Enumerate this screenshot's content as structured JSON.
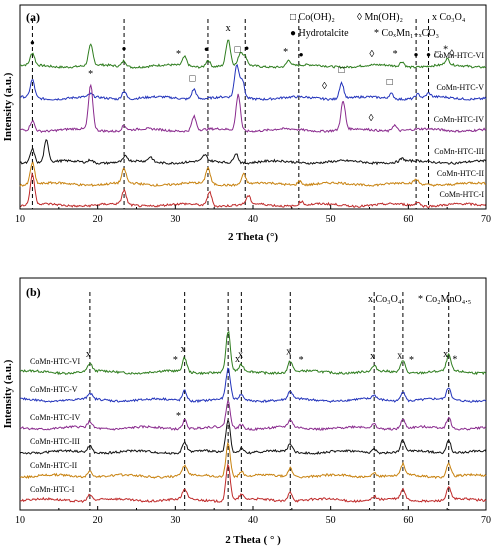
{
  "chart_data": [
    {
      "type": "line",
      "panel_label": "(a)",
      "xlabel": "2 Theta (°)",
      "ylabel": "Intensity (a.u.)",
      "xlim": [
        10,
        70
      ],
      "xticks": [
        10,
        20,
        30,
        40,
        50,
        60,
        70
      ],
      "legend": [
        {
          "symbol": "□",
          "text": "Co(OH)₂"
        },
        {
          "symbol": "◊",
          "text": "Mn(OH)₂"
        },
        {
          "symbol": "x",
          "text": "Co₃O₄"
        },
        {
          "symbol": "●",
          "text": "Hydrotalcite"
        },
        {
          "symbol": "*",
          "text": "CoₓMn₁₋ₓCO₃"
        }
      ],
      "series": [
        {
          "name": "CoMn-HTC-VI",
          "color": "#2e7d1e",
          "peaks": [
            [
              11.6,
              12
            ],
            [
              19.1,
              20
            ],
            [
              23.4,
              6
            ],
            [
              31.2,
              9
            ],
            [
              34.2,
              7
            ],
            [
              36.8,
              26
            ],
            [
              38.4,
              12
            ],
            [
              39.0,
              8
            ],
            [
              44.6,
              6
            ],
            [
              59.2,
              5
            ],
            [
              65.0,
              6
            ]
          ]
        },
        {
          "name": "CoMn-HTC-V",
          "color": "#2233bb",
          "peaks": [
            [
              11.6,
              18
            ],
            [
              19.1,
              3
            ],
            [
              23.4,
              8
            ],
            [
              32.4,
              10
            ],
            [
              37.9,
              32
            ],
            [
              38.6,
              18
            ],
            [
              51.4,
              16
            ],
            [
              57.8,
              5
            ],
            [
              61.2,
              4
            ],
            [
              62.6,
              4
            ]
          ]
        },
        {
          "name": "CoMn-HTC-IV",
          "color": "#8a2b8e",
          "peaks": [
            [
              11.6,
              10
            ],
            [
              19.1,
              44
            ],
            [
              23.4,
              5
            ],
            [
              32.4,
              14
            ],
            [
              38.1,
              36
            ],
            [
              51.6,
              28
            ],
            [
              58.2,
              6
            ]
          ]
        },
        {
          "name": "CoMn-HTC-III",
          "color": "#111111",
          "peaks": [
            [
              11.6,
              14
            ],
            [
              13.4,
              22
            ],
            [
              19.1,
              3
            ],
            [
              23.6,
              5
            ],
            [
              26.8,
              5
            ],
            [
              33.8,
              6
            ],
            [
              37.8,
              10
            ],
            [
              59.2,
              3
            ]
          ]
        },
        {
          "name": "CoMn-HTC-II",
          "color": "#c8820f",
          "peaks": [
            [
              11.6,
              22
            ],
            [
              23.4,
              14
            ],
            [
              34.2,
              16
            ],
            [
              38.8,
              10
            ],
            [
              46.0,
              4
            ],
            [
              61.0,
              4
            ]
          ]
        },
        {
          "name": "CoMn-HTC-I",
          "color": "#bf2a2a",
          "peaks": [
            [
              11.6,
              30
            ],
            [
              23.4,
              14
            ],
            [
              34.4,
              14
            ],
            [
              39.4,
              8
            ],
            [
              46.2,
              4
            ],
            [
              61.2,
              4
            ]
          ]
        }
      ],
      "reference_lines": [
        11.6,
        23.4,
        34.2,
        39.0,
        45.9,
        61.0,
        62.6
      ],
      "annotations": [
        {
          "x": 11.6,
          "series": "CoMn-HTC-VI",
          "label": "●"
        },
        {
          "x": 19.1,
          "series": "CoMn-HTC-IV",
          "label": "*"
        },
        {
          "x": 23.4,
          "series": "CoMn-HTC-VI",
          "label": "●"
        },
        {
          "x": 30.4,
          "series": "CoMn-HTC-VI",
          "label": "*"
        },
        {
          "x": 34.0,
          "series": "CoMn-HTC-VI",
          "label": "●"
        },
        {
          "x": 36.8,
          "series": "CoMn-HTC-VI",
          "label": "x"
        },
        {
          "x": 38.0,
          "series": "CoMn-HTC-VI",
          "label": "□"
        },
        {
          "x": 39.2,
          "series": "CoMn-HTC-VI",
          "label": "●"
        },
        {
          "x": 44.2,
          "series": "CoMn-HTC-VI",
          "label": "*"
        },
        {
          "x": 46.2,
          "series": "CoMn-HTC-VI",
          "label": "●"
        },
        {
          "x": 55.3,
          "series": "CoMn-HTC-VI",
          "label": "◊"
        },
        {
          "x": 58.3,
          "series": "CoMn-HTC-VI",
          "label": "*"
        },
        {
          "x": 61.0,
          "series": "CoMn-HTC-VI",
          "label": "●"
        },
        {
          "x": 62.6,
          "series": "CoMn-HTC-VI",
          "label": "●"
        },
        {
          "x": 63.8,
          "series": "CoMn-HTC-VI",
          "label": "□"
        },
        {
          "x": 64.8,
          "series": "CoMn-HTC-VI",
          "label": "*"
        },
        {
          "x": 65.6,
          "series": "CoMn-HTC-VI",
          "label": "◊"
        },
        {
          "x": 32.2,
          "series": "CoMn-HTC-V",
          "label": "□"
        },
        {
          "x": 49.2,
          "series": "CoMn-HTC-V",
          "label": "◊"
        },
        {
          "x": 51.4,
          "series": "CoMn-HTC-V",
          "label": "□"
        },
        {
          "x": 57.6,
          "series": "CoMn-HTC-V",
          "label": "□"
        },
        {
          "x": 55.2,
          "series": "CoMn-HTC-IV",
          "label": "◊"
        }
      ]
    },
    {
      "type": "line",
      "panel_label": "(b)",
      "xlabel": "2 Theta ( ° )",
      "ylabel": "Intensity (a.u.)",
      "xlim": [
        10,
        70
      ],
      "xticks": [
        10,
        20,
        30,
        40,
        50,
        60,
        70
      ],
      "legend": [
        {
          "symbol": "x",
          "text": "Co₃O₄"
        },
        {
          "symbol": "*",
          "text": "Co₂MnO₄.₅"
        }
      ],
      "series": [
        {
          "name": "CoMn-HTC-VI",
          "color": "#2e7d1e",
          "peaks": [
            [
              19.0,
              8
            ],
            [
              31.2,
              14
            ],
            [
              36.8,
              40
            ],
            [
              38.5,
              6
            ],
            [
              44.8,
              11
            ],
            [
              55.6,
              5
            ],
            [
              59.3,
              13
            ],
            [
              65.2,
              16
            ]
          ]
        },
        {
          "name": "CoMn-HTC-V",
          "color": "#2233bb",
          "peaks": [
            [
              19.0,
              6
            ],
            [
              31.2,
              10
            ],
            [
              36.8,
              30
            ],
            [
              38.5,
              5
            ],
            [
              44.8,
              8
            ],
            [
              55.6,
              4
            ],
            [
              59.3,
              10
            ],
            [
              65.2,
              12
            ]
          ]
        },
        {
          "name": "CoMn-HTC-IV",
          "color": "#8a2b8e",
          "peaks": [
            [
              19.0,
              6
            ],
            [
              31.2,
              9
            ],
            [
              36.8,
              26
            ],
            [
              38.5,
              4
            ],
            [
              44.8,
              7
            ],
            [
              55.6,
              4
            ],
            [
              59.3,
              9
            ],
            [
              65.2,
              11
            ]
          ]
        },
        {
          "name": "CoMn-HTC-III",
          "color": "#111111",
          "peaks": [
            [
              19.0,
              7
            ],
            [
              31.2,
              10
            ],
            [
              36.8,
              32
            ],
            [
              38.5,
              5
            ],
            [
              44.8,
              8
            ],
            [
              55.6,
              4
            ],
            [
              59.3,
              11
            ],
            [
              65.2,
              13
            ]
          ]
        },
        {
          "name": "CoMn-HTC-II",
          "color": "#c8820f",
          "peaks": [
            [
              19.0,
              7
            ],
            [
              31.2,
              10
            ],
            [
              36.8,
              34
            ],
            [
              38.5,
              5
            ],
            [
              44.8,
              9
            ],
            [
              55.6,
              4
            ],
            [
              59.3,
              11
            ],
            [
              65.2,
              13
            ]
          ]
        },
        {
          "name": "CoMn-HTC-I",
          "color": "#bf2a2a",
          "peaks": [
            [
              19.0,
              6
            ],
            [
              31.2,
              10
            ],
            [
              36.8,
              36
            ],
            [
              38.5,
              5
            ],
            [
              44.8,
              9
            ],
            [
              55.6,
              4
            ],
            [
              59.3,
              10
            ],
            [
              65.2,
              12
            ]
          ]
        }
      ],
      "reference_lines": [
        19.0,
        31.2,
        36.8,
        38.5,
        44.8,
        55.6,
        59.3,
        65.2
      ],
      "annotations": [
        {
          "x": 18.8,
          "series": "CoMn-HTC-VI",
          "label": "x"
        },
        {
          "x": 31.0,
          "series": "CoMn-HTC-VI",
          "label": "x"
        },
        {
          "x": 30.0,
          "series": "CoMn-HTC-VI",
          "label": "*"
        },
        {
          "x": 38.0,
          "series": "CoMn-HTC-VI",
          "label": "x"
        },
        {
          "x": 38.4,
          "series": "CoMn-HTC-VI",
          "label": "x"
        },
        {
          "x": 44.6,
          "series": "CoMn-HTC-VI",
          "label": "x"
        },
        {
          "x": 46.2,
          "series": "CoMn-HTC-VI",
          "label": "*"
        },
        {
          "x": 55.4,
          "series": "CoMn-HTC-VI",
          "label": "x"
        },
        {
          "x": 58.9,
          "series": "CoMn-HTC-VI",
          "label": "x"
        },
        {
          "x": 60.4,
          "series": "CoMn-HTC-VI",
          "label": "*"
        },
        {
          "x": 64.8,
          "series": "CoMn-HTC-VI",
          "label": "x"
        },
        {
          "x": 66.0,
          "series": "CoMn-HTC-VI",
          "label": "*"
        },
        {
          "x": 30.4,
          "series": "CoMn-HTC-IV",
          "label": "*"
        }
      ]
    }
  ]
}
